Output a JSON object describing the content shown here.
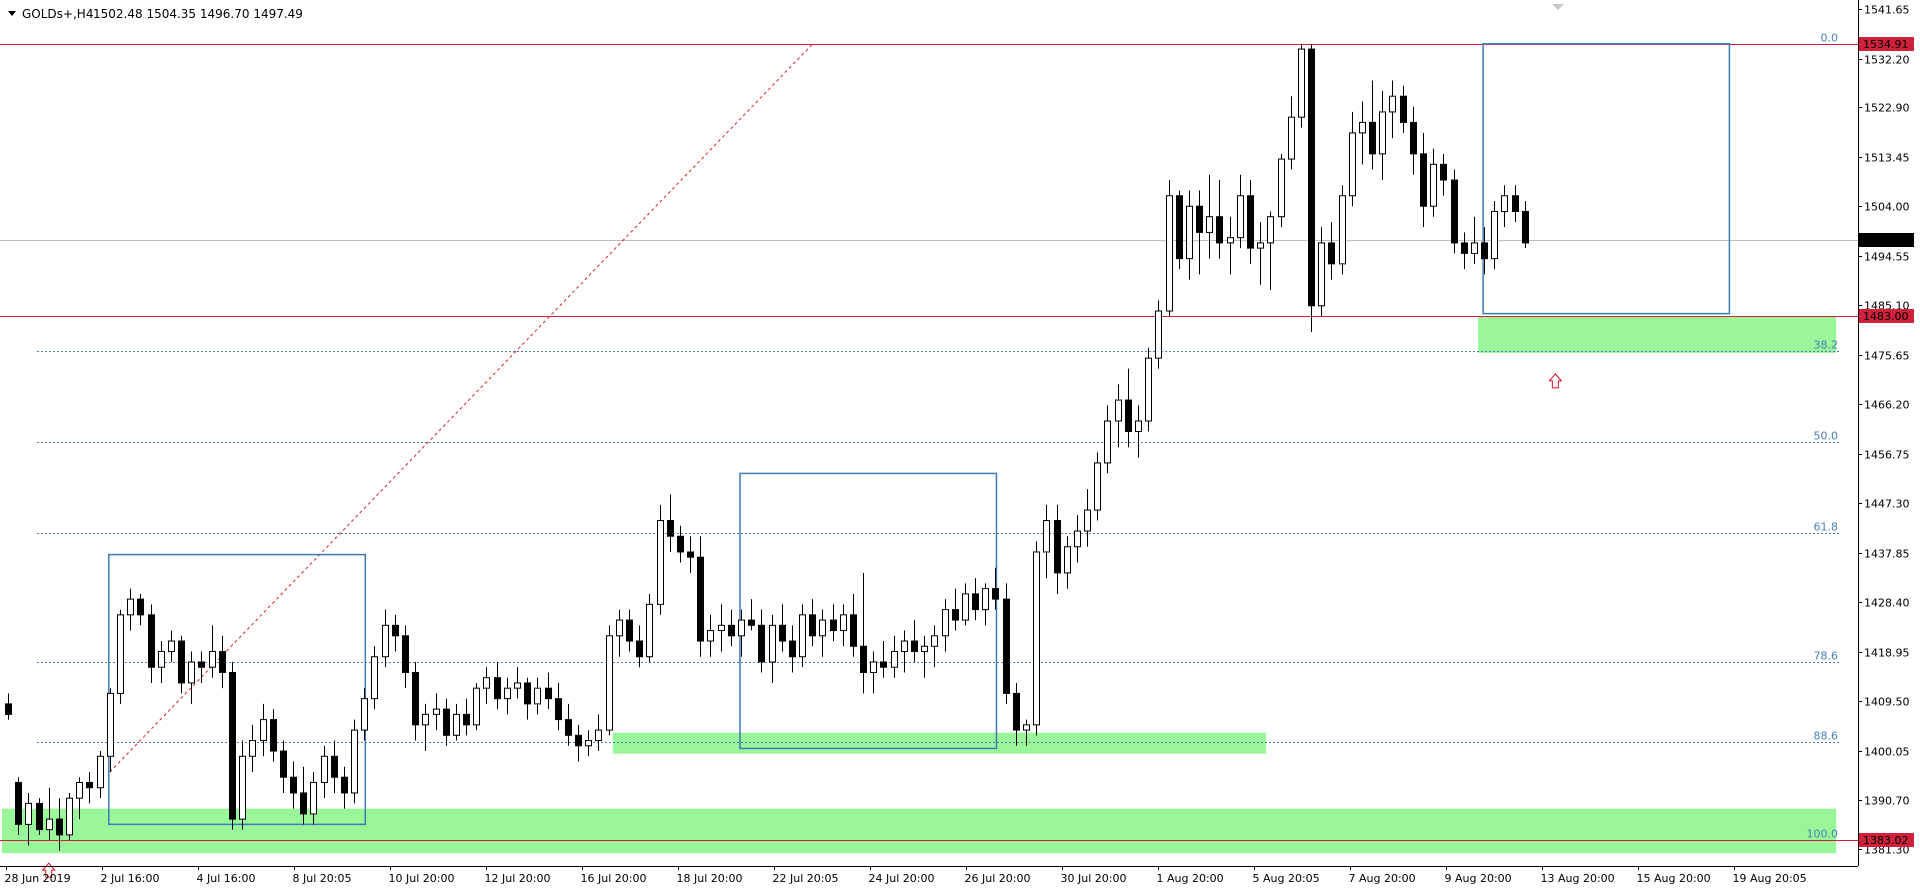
{
  "header": {
    "symbol": "GOLDs+,H4",
    "ohlc": "1502.48 1504.35 1496.70 1497.49"
  },
  "colors": {
    "bull_body": "#ffffff",
    "bear_body": "#000000",
    "wick": "#000000",
    "zone": "#99f799",
    "box": "#3d7ab8",
    "fib": "#4a7fb6",
    "hline": "#d0203b",
    "trend": "#e02020",
    "price_label_bg": "#d0203b",
    "current_label_bg": "#000000"
  },
  "chart_data": {
    "type": "candlestick",
    "symbol": "GOLDs+",
    "timeframe": "H4",
    "ylim": [
      1378,
      1542
    ],
    "y_ticks": [
      "1541.65",
      "1532.20",
      "1522.90",
      "1513.45",
      "1504.00",
      "1494.55",
      "1485.10",
      "1475.65",
      "1466.20",
      "1456.75",
      "1447.30",
      "1437.85",
      "1428.40",
      "1418.95",
      "1409.50",
      "1400.05",
      "1390.70",
      "1381.30"
    ],
    "x_labels": [
      "28 Jun 2019",
      "2 Jul 16:00",
      "4 Jul 16:00",
      "8 Jul 20:05",
      "10 Jul 20:00",
      "12 Jul 20:00",
      "16 Jul 20:00",
      "18 Jul 20:00",
      "22 Jul 20:05",
      "24 Jul 20:00",
      "26 Jul 20:00",
      "30 Jul 20:00",
      "1 Aug 20:00",
      "5 Aug 20:05",
      "7 Aug 20:00",
      "9 Aug 20:00",
      "13 Aug 20:00",
      "15 Aug 20:00",
      "19 Aug 20:05"
    ],
    "candles": [
      [
        1409,
        1411,
        1406,
        1407
      ],
      [
        1394,
        1395,
        1384,
        1386
      ],
      [
        1386,
        1392,
        1382,
        1390
      ],
      [
        1390,
        1391,
        1384,
        1385
      ],
      [
        1385,
        1393,
        1383,
        1387
      ],
      [
        1387,
        1391,
        1381,
        1384
      ],
      [
        1384,
        1392,
        1383,
        1391
      ],
      [
        1391,
        1395,
        1387,
        1394
      ],
      [
        1394,
        1396,
        1390,
        1393
      ],
      [
        1393,
        1400,
        1391,
        1399
      ],
      [
        1399,
        1412,
        1396,
        1411
      ],
      [
        1411,
        1427,
        1409,
        1426
      ],
      [
        1426,
        1431,
        1423,
        1429
      ],
      [
        1429,
        1430,
        1424,
        1426
      ],
      [
        1426,
        1428,
        1413,
        1416
      ],
      [
        1416,
        1421,
        1413,
        1419
      ],
      [
        1419,
        1423,
        1417,
        1421
      ],
      [
        1421,
        1422,
        1411,
        1413
      ],
      [
        1413,
        1419,
        1409,
        1417
      ],
      [
        1417,
        1419,
        1413,
        1416
      ],
      [
        1416,
        1424,
        1414,
        1419
      ],
      [
        1419,
        1422,
        1412,
        1415
      ],
      [
        1415,
        1417,
        1385,
        1387
      ],
      [
        1387,
        1402,
        1385,
        1399
      ],
      [
        1399,
        1405,
        1396,
        1402
      ],
      [
        1402,
        1409,
        1399,
        1406
      ],
      [
        1406,
        1408,
        1398,
        1400
      ],
      [
        1400,
        1402,
        1392,
        1395
      ],
      [
        1395,
        1398,
        1389,
        1392
      ],
      [
        1392,
        1397,
        1386,
        1388
      ],
      [
        1388,
        1396,
        1386,
        1394
      ],
      [
        1394,
        1401,
        1391,
        1399
      ],
      [
        1399,
        1402,
        1392,
        1395
      ],
      [
        1395,
        1397,
        1389,
        1392
      ],
      [
        1392,
        1406,
        1390,
        1404
      ],
      [
        1404,
        1412,
        1402,
        1410
      ],
      [
        1410,
        1420,
        1408,
        1418
      ],
      [
        1418,
        1427,
        1416,
        1424
      ],
      [
        1424,
        1426,
        1419,
        1422
      ],
      [
        1422,
        1424,
        1412,
        1415
      ],
      [
        1415,
        1417,
        1402,
        1405
      ],
      [
        1405,
        1409,
        1400,
        1407
      ],
      [
        1407,
        1411,
        1404,
        1408
      ],
      [
        1408,
        1410,
        1401,
        1403
      ],
      [
        1403,
        1409,
        1402,
        1407
      ],
      [
        1407,
        1410,
        1403,
        1405
      ],
      [
        1405,
        1413,
        1404,
        1412
      ],
      [
        1412,
        1416,
        1409,
        1414
      ],
      [
        1414,
        1417,
        1408,
        1410
      ],
      [
        1410,
        1414,
        1407,
        1412
      ],
      [
        1412,
        1416,
        1410,
        1413
      ],
      [
        1413,
        1414,
        1406,
        1409
      ],
      [
        1409,
        1414,
        1407,
        1412
      ],
      [
        1412,
        1415,
        1408,
        1410
      ],
      [
        1410,
        1413,
        1404,
        1406
      ],
      [
        1406,
        1409,
        1401,
        1403
      ],
      [
        1403,
        1405,
        1398,
        1401
      ],
      [
        1401,
        1404,
        1399,
        1402
      ],
      [
        1402,
        1407,
        1400,
        1404
      ],
      [
        1404,
        1424,
        1403,
        1422
      ],
      [
        1422,
        1427,
        1418,
        1425
      ],
      [
        1425,
        1427,
        1419,
        1421
      ],
      [
        1421,
        1424,
        1416,
        1418
      ],
      [
        1418,
        1430,
        1417,
        1428
      ],
      [
        1428,
        1447,
        1426,
        1444
      ],
      [
        1444,
        1449,
        1438,
        1441
      ],
      [
        1441,
        1443,
        1436,
        1438
      ],
      [
        1438,
        1441,
        1434,
        1437
      ],
      [
        1437,
        1441,
        1418,
        1421
      ],
      [
        1421,
        1426,
        1418,
        1423
      ],
      [
        1423,
        1428,
        1419,
        1424
      ],
      [
        1424,
        1427,
        1420,
        1422
      ],
      [
        1422,
        1427,
        1418,
        1425
      ],
      [
        1425,
        1429,
        1423,
        1424
      ],
      [
        1424,
        1427,
        1415,
        1417
      ],
      [
        1417,
        1426,
        1413,
        1424
      ],
      [
        1424,
        1428,
        1419,
        1421
      ],
      [
        1421,
        1424,
        1415,
        1418
      ],
      [
        1418,
        1428,
        1416,
        1426
      ],
      [
        1426,
        1429,
        1420,
        1422
      ],
      [
        1422,
        1427,
        1418,
        1425
      ],
      [
        1425,
        1428,
        1421,
        1423
      ],
      [
        1423,
        1428,
        1420,
        1426
      ],
      [
        1426,
        1430,
        1418,
        1420
      ],
      [
        1420,
        1434,
        1411,
        1415
      ],
      [
        1415,
        1419,
        1411,
        1417
      ],
      [
        1417,
        1421,
        1414,
        1416
      ],
      [
        1416,
        1422,
        1414,
        1419
      ],
      [
        1419,
        1423,
        1415,
        1421
      ],
      [
        1421,
        1425,
        1417,
        1419
      ],
      [
        1419,
        1422,
        1414,
        1420
      ],
      [
        1420,
        1424,
        1416,
        1422
      ],
      [
        1422,
        1429,
        1419,
        1427
      ],
      [
        1427,
        1431,
        1423,
        1425
      ],
      [
        1425,
        1432,
        1424,
        1430
      ],
      [
        1430,
        1433,
        1425,
        1427
      ],
      [
        1427,
        1432,
        1424,
        1431
      ],
      [
        1431,
        1435,
        1427,
        1429
      ],
      [
        1429,
        1432,
        1409,
        1411
      ],
      [
        1411,
        1413,
        1401,
        1404
      ],
      [
        1404,
        1406,
        1401,
        1405
      ],
      [
        1405,
        1440,
        1403,
        1438
      ],
      [
        1438,
        1447,
        1433,
        1444
      ],
      [
        1444,
        1447,
        1430,
        1434
      ],
      [
        1434,
        1441,
        1431,
        1439
      ],
      [
        1439,
        1445,
        1436,
        1442
      ],
      [
        1442,
        1450,
        1439,
        1446
      ],
      [
        1446,
        1457,
        1444,
        1455
      ],
      [
        1455,
        1466,
        1453,
        1463
      ],
      [
        1463,
        1470,
        1458,
        1467
      ],
      [
        1467,
        1473,
        1458,
        1461
      ],
      [
        1461,
        1466,
        1456,
        1463
      ],
      [
        1463,
        1477,
        1461,
        1475
      ],
      [
        1475,
        1486,
        1473,
        1484
      ],
      [
        1484,
        1509,
        1483,
        1506
      ],
      [
        1506,
        1507,
        1492,
        1494
      ],
      [
        1494,
        1507,
        1490,
        1504
      ],
      [
        1504,
        1507,
        1491,
        1499
      ],
      [
        1499,
        1510,
        1494,
        1502
      ],
      [
        1502,
        1509,
        1494,
        1497
      ],
      [
        1497,
        1502,
        1491,
        1498
      ],
      [
        1498,
        1510,
        1496,
        1506
      ],
      [
        1506,
        1509,
        1493,
        1496
      ],
      [
        1496,
        1501,
        1489,
        1497
      ],
      [
        1497,
        1503,
        1488,
        1502
      ],
      [
        1502,
        1514,
        1500,
        1513
      ],
      [
        1513,
        1525,
        1511,
        1521
      ],
      [
        1521,
        1535,
        1519,
        1534
      ],
      [
        1534,
        1535,
        1480,
        1485
      ],
      [
        1485,
        1500,
        1483,
        1497
      ],
      [
        1497,
        1501,
        1490,
        1493
      ],
      [
        1493,
        1508,
        1491,
        1506
      ],
      [
        1506,
        1522,
        1504,
        1518
      ],
      [
        1518,
        1524,
        1512,
        1520
      ],
      [
        1520,
        1528,
        1511,
        1514
      ],
      [
        1514,
        1526,
        1509,
        1522
      ],
      [
        1522,
        1528,
        1517,
        1525
      ],
      [
        1525,
        1527,
        1518,
        1520
      ],
      [
        1520,
        1523,
        1510,
        1514
      ],
      [
        1514,
        1518,
        1500,
        1504
      ],
      [
        1504,
        1515,
        1502,
        1512
      ],
      [
        1512,
        1514,
        1506,
        1509
      ],
      [
        1509,
        1511,
        1495,
        1497
      ],
      [
        1497,
        1499,
        1492,
        1495
      ],
      [
        1495,
        1502,
        1493,
        1497
      ],
      [
        1497,
        1500,
        1491,
        1494
      ],
      [
        1494,
        1505,
        1492,
        1503
      ],
      [
        1503,
        1508,
        1500,
        1506
      ],
      [
        1506,
        1508,
        1501,
        1503
      ],
      [
        1503,
        1505,
        1496,
        1497
      ]
    ],
    "h_lines": [
      {
        "price": 1534.91,
        "label": "1534.91"
      },
      {
        "price": 1483.0,
        "label": "1483.00"
      },
      {
        "price": 1383.02,
        "label": "1383.02"
      }
    ],
    "current_price": {
      "price": 1497.49,
      "label": "1497.49"
    },
    "fib_levels": [
      {
        "price": 1534.91,
        "label": "0.0"
      },
      {
        "price": 1476.27,
        "label": "38.2"
      },
      {
        "price": 1458.95,
        "label": "50.0"
      },
      {
        "price": 1441.65,
        "label": "61.8"
      },
      {
        "price": 1416.99,
        "label": "78.6"
      },
      {
        "price": 1401.79,
        "label": "88.6"
      },
      {
        "price": 1383.02,
        "label": "100.0"
      }
    ],
    "zones": [
      {
        "from_bar": 0,
        "to_bar": 179,
        "top": 1389.0,
        "bottom": 1380.5
      },
      {
        "from_bar": 60,
        "to_bar": 123,
        "top": 1403.5,
        "bottom": 1399.5
      },
      {
        "from_bar": 145,
        "to_bar": 179,
        "top": 1483.0,
        "bottom": 1476.0
      }
    ],
    "boxes": [
      {
        "from_bar": 10,
        "to_bar": 35,
        "top": 1437.5,
        "bottom": 1386.0
      },
      {
        "from_bar": 72,
        "to_bar": 97,
        "top": 1453.0,
        "bottom": 1400.5
      },
      {
        "from_bar": 145,
        "to_bar": 169,
        "top": 1535.0,
        "bottom": 1483.5
      }
    ],
    "trendline": {
      "from_bar": 10,
      "from_price": 1396.0,
      "to_bar": 79,
      "to_price": 1534.9
    },
    "arrows": [
      {
        "bar": 4,
        "price": 1378.6
      },
      {
        "bar": 152,
        "price": 1472.0
      }
    ]
  }
}
